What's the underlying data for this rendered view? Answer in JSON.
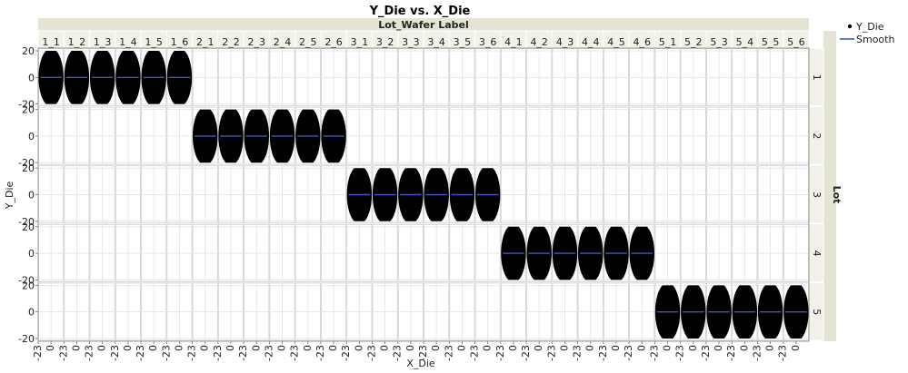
{
  "chart_data": {
    "type": "scatter",
    "title": "Y_Die vs. X_Die",
    "xlabel": "X_Die",
    "ylabel": "Y_Die",
    "column_group_label": "Lot_Wafer Label",
    "row_group_label": "Lot",
    "columns": [
      "1_1",
      "1_2",
      "1_3",
      "1_4",
      "1_5",
      "1_6",
      "2_1",
      "2_2",
      "2_3",
      "2_4",
      "2_5",
      "2_6",
      "3_1",
      "3_2",
      "3_3",
      "3_4",
      "3_5",
      "3_6",
      "4_1",
      "4_2",
      "4_3",
      "4_4",
      "4_5",
      "4_6",
      "5_1",
      "5_2",
      "5_3",
      "5_4",
      "5_5",
      "5_6"
    ],
    "rows": [
      "1",
      "2",
      "3",
      "4",
      "5"
    ],
    "ylim": [
      -20,
      20
    ],
    "y_ticks": [
      "20",
      "0",
      "-20"
    ],
    "xlim": [
      -23,
      23
    ],
    "x_ticks": [
      "-23",
      "0"
    ],
    "markers": {
      "radius_x": 23,
      "radius_y": 22
    },
    "legend": [
      {
        "label": "Y_Die",
        "symbol": "dot"
      },
      {
        "label": "Smooth",
        "symbol": "line"
      }
    ],
    "legend_position": "top-right",
    "colors": {
      "points": "#000000",
      "smooth": "#3a5bc7",
      "header_bg": "#e5e4d4",
      "grid": "#e2e2e2"
    }
  }
}
